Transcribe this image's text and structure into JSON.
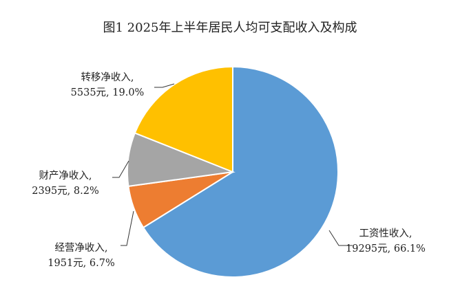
{
  "chart_data": {
    "type": "pie",
    "title": "图1 2025年上半年居民人均可支配收入及构成",
    "categories": [
      "工资性收入",
      "经营净收入",
      "财产净收入",
      "转移净收入"
    ],
    "values": [
      19295,
      1951,
      2395,
      5535
    ],
    "percents": [
      66.1,
      6.7,
      8.2,
      19.0
    ],
    "colors": [
      "#5B9BD5",
      "#ED7D31",
      "#A5A5A5",
      "#FFC000"
    ],
    "labels": [
      {
        "name": "工资性收入,",
        "detail": "19295元, 66.1%"
      },
      {
        "name": "经营净收入,",
        "detail": "1951元, 6.7%"
      },
      {
        "name": "财产净收入,",
        "detail": "2395元, 8.2%"
      },
      {
        "name": "转移净收入,",
        "detail": "5535元, 19.0%"
      }
    ]
  }
}
